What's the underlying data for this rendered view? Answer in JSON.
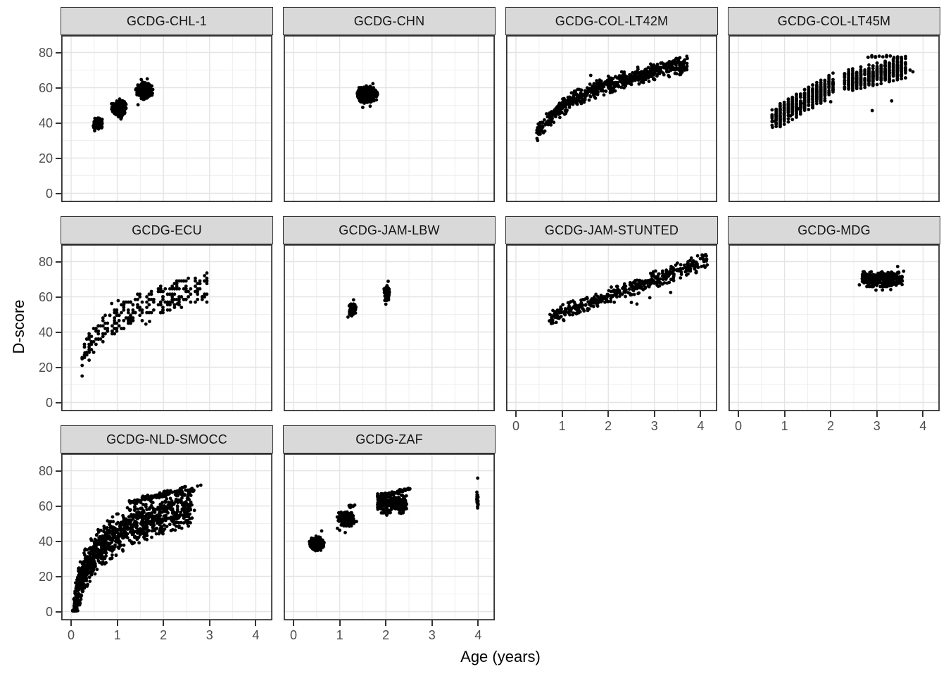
{
  "chart_data": {
    "type": "scatter",
    "title": "",
    "xlabel": "Age (years)",
    "ylabel": "D-score",
    "facet_variable": "cohort",
    "legend": "none",
    "grid": true,
    "point_color": "#000000",
    "strip_fill": "#d9d9d9",
    "strip_text_color": "#141414",
    "panel_border_color": "#333333",
    "grid_major_color": "#e4e4e4",
    "grid_minor_color": "#efefef",
    "tick_color": "#333333",
    "tick_label_color": "#4d4d4d",
    "x_ticks": [
      0,
      1,
      2,
      3,
      4
    ],
    "y_ticks": [
      0,
      20,
      40,
      60,
      80
    ],
    "x_minor": [
      0.5,
      1.5,
      2.5,
      3.5
    ],
    "y_minor": [
      10,
      30,
      50,
      70
    ],
    "x_domain": [
      -0.213,
      4.36
    ],
    "y_domain": [
      -5.0,
      89.8
    ],
    "panels": [
      {
        "title": "GCDG-CHL-1",
        "row": 0,
        "col": 0,
        "clusters": [
          {
            "kind": "blob",
            "cx": 0.58,
            "cy": 39.6,
            "rx": 0.1,
            "ry": 3.2,
            "n": 75
          },
          {
            "kind": "blob",
            "cx": 1.04,
            "cy": 48.3,
            "rx": 0.15,
            "ry": 4.6,
            "n": 150
          },
          {
            "kind": "blob",
            "cx": 1.58,
            "cy": 58.0,
            "rx": 0.17,
            "ry": 4.6,
            "n": 150
          },
          {
            "kind": "pts",
            "pts": [
              [
                1.08,
                42.2
              ],
              [
                1.45,
                50.3
              ],
              [
                1.52,
                64.6
              ],
              [
                1.65,
                65.0
              ],
              [
                0.51,
                35.5
              ]
            ]
          }
        ]
      },
      {
        "title": "GCDG-CHN",
        "row": 0,
        "col": 1,
        "clusters": [
          {
            "kind": "blob",
            "cx": 1.6,
            "cy": 56.0,
            "rx": 0.2,
            "ry": 4.4,
            "n": 300
          },
          {
            "kind": "pts",
            "pts": [
              [
                1.5,
                48.8
              ],
              [
                1.66,
                49.5
              ],
              [
                1.72,
                62.3
              ],
              [
                1.42,
                60.0
              ]
            ]
          }
        ]
      },
      {
        "title": "GCDG-COL-LT42M",
        "row": 0,
        "col": 2,
        "clusters": [
          {
            "kind": "curve",
            "model": "log",
            "x0": 0.45,
            "x1": 3.72,
            "a": 48.8,
            "b": 18.5,
            "sd": 2.3,
            "n": 680
          },
          {
            "kind": "pts",
            "pts": [
              [
                1.62,
                67.0
              ],
              [
                0.47,
                30.0
              ],
              [
                3.55,
                77.0
              ]
            ]
          }
        ]
      },
      {
        "title": "GCDG-COL-LT45M",
        "row": 0,
        "col": 3,
        "clusters": [
          {
            "kind": "curve",
            "model": "lin",
            "x0": 0.73,
            "x1": 2.04,
            "a": 30.6,
            "b": 15.2,
            "sd": 3.1,
            "n": 470,
            "xq": 0.088
          },
          {
            "kind": "curve",
            "model": "lin",
            "x0": 2.3,
            "x1": 3.64,
            "a": 49.4,
            "b": 6.15,
            "sd": 2.9,
            "n": 470,
            "xq": 0.088
          },
          {
            "kind": "curve",
            "model": "lin",
            "x0": 2.73,
            "x1": 3.62,
            "a": 77.6,
            "b": 0,
            "sd": 0.3,
            "n": 13,
            "xq": 0.08
          },
          {
            "kind": "pts",
            "pts": [
              [
                2.9,
                47.0
              ],
              [
                3.32,
                52.5
              ],
              [
                1.3,
                48.0
              ],
              [
                1.36,
                51.0
              ],
              [
                2.0,
                52.0
              ],
              [
                1.13,
                44.0
              ],
              [
                0.78,
                41.0
              ],
              [
                3.72,
                70.0
              ],
              [
                3.78,
                69.0
              ],
              [
                0.74,
                37.5
              ]
            ]
          }
        ]
      },
      {
        "title": "GCDG-ECU",
        "row": 1,
        "col": 0,
        "clusters": [
          {
            "kind": "curve",
            "model": "log",
            "x0": 0.24,
            "x1": 2.95,
            "a": 47.0,
            "b": 16.9,
            "sd": 0,
            "su": 8,
            "n": 265,
            "xq": 0.05,
            "yq": 1.5,
            "ymax": 76.5
          },
          {
            "kind": "pts",
            "pts": [
              [
                0.88,
                56.2
              ],
              [
                1.02,
                57.8
              ],
              [
                0.24,
                24.8
              ],
              [
                0.3,
                28.2
              ],
              [
                1.62,
                44.5
              ],
              [
                1.7,
                46.0
              ],
              [
                2.3,
                56.0
              ]
            ]
          }
        ]
      },
      {
        "title": "GCDG-JAM-LBW",
        "row": 1,
        "col": 1,
        "clusters": [
          {
            "kind": "blob",
            "cx": 1.27,
            "cy": 53.0,
            "rx": 0.07,
            "ry": 3.6,
            "n": 60
          },
          {
            "kind": "blob",
            "cx": 2.02,
            "cy": 62.5,
            "rx": 0.06,
            "ry": 4.2,
            "n": 62
          },
          {
            "kind": "pts",
            "pts": [
              [
                1.18,
                48.5
              ],
              [
                1.35,
                54.3
              ],
              [
                2.0,
                55.8
              ],
              [
                2.05,
                68.8
              ],
              [
                1.3,
                58.3
              ]
            ]
          }
        ]
      },
      {
        "title": "GCDG-JAM-STUNTED",
        "row": 1,
        "col": 2,
        "clusters": [
          {
            "kind": "curve",
            "model": "lin",
            "x0": 0.72,
            "x1": 4.15,
            "a": 41.3,
            "b": 9.5,
            "sd": 2.2,
            "n": 420
          },
          {
            "kind": "pts",
            "pts": [
              [
                2.5,
                56.8
              ],
              [
                2.9,
                59.5
              ],
              [
                3.35,
                62.5
              ],
              [
                4.05,
                81.5
              ],
              [
                2.62,
                55.9
              ]
            ]
          }
        ]
      },
      {
        "title": "GCDG-MDG",
        "row": 1,
        "col": 3,
        "clusters": [
          {
            "kind": "curve",
            "model": "lin",
            "x0": 2.68,
            "x1": 3.56,
            "a": 70.0,
            "b": 0,
            "sd": 2.0,
            "n": 300,
            "ymin": 64.5,
            "ymax": 75.5
          },
          {
            "kind": "pts",
            "pts": [
              [
                2.98,
                63.8
              ],
              [
                3.12,
                63.9
              ],
              [
                3.3,
                64.1
              ],
              [
                3.45,
                77.2
              ],
              [
                2.62,
                66.8
              ],
              [
                3.58,
                74.5
              ]
            ]
          }
        ]
      },
      {
        "title": "GCDG-NLD-SMOCC",
        "row": 2,
        "col": 0,
        "clusters": [
          {
            "kind": "curve",
            "model": "log",
            "x0": 0.035,
            "x1": 2.62,
            "a": 44.0,
            "b": 17.0,
            "sd": 5.5,
            "n": 1150,
            "wx": 1.7,
            "ymin": 0.5,
            "ymax": 73
          },
          {
            "kind": "curve",
            "model": "log",
            "x0": 1.25,
            "x1": 2.68,
            "a": 59.3,
            "b": 10.4,
            "sd": 0.8,
            "n": 130
          },
          {
            "kind": "pts",
            "pts": [
              [
                2.74,
                71.3
              ],
              [
                2.81,
                71.8
              ],
              [
                2.2,
                46.5
              ],
              [
                2.34,
                47.8
              ],
              [
                2.55,
                55.0
              ],
              [
                2.67,
                57.5
              ],
              [
                1.95,
                48.0
              ],
              [
                2.45,
                53.5
              ]
            ]
          }
        ]
      },
      {
        "title": "GCDG-ZAF",
        "row": 2,
        "col": 1,
        "clusters": [
          {
            "kind": "blob",
            "cx": 0.5,
            "cy": 38.5,
            "rx": 0.16,
            "ry": 3.6,
            "n": 170
          },
          {
            "kind": "blob",
            "cx": 1.15,
            "cy": 52.5,
            "rx": 0.17,
            "ry": 4.0,
            "n": 180
          },
          {
            "kind": "curve",
            "model": "lin",
            "x0": 1.2,
            "x1": 1.34,
            "a": 59.8,
            "b": 0,
            "sd": 0.5,
            "n": 12
          },
          {
            "kind": "curve",
            "model": "lin",
            "x0": 1.82,
            "x1": 2.45,
            "a": 61.5,
            "b": 0,
            "sd": 2.6,
            "n": 280
          },
          {
            "kind": "curve",
            "model": "lin",
            "x0": 1.95,
            "x1": 2.52,
            "a": 53.9,
            "b": 6.3,
            "sd": 0.5,
            "n": 50
          },
          {
            "kind": "curve",
            "model": "lin",
            "x0": 3.97,
            "x1": 4.0,
            "a": 63.5,
            "b": 0,
            "sd": 2.4,
            "n": 26
          },
          {
            "kind": "pts",
            "pts": [
              [
                1.0,
                46.2
              ],
              [
                1.12,
                44.9
              ],
              [
                2.02,
                54.8
              ],
              [
                2.33,
                55.8
              ],
              [
                3.99,
                75.8
              ],
              [
                0.61,
                45.8
              ],
              [
                0.95,
                47.3
              ]
            ]
          }
        ]
      }
    ]
  }
}
